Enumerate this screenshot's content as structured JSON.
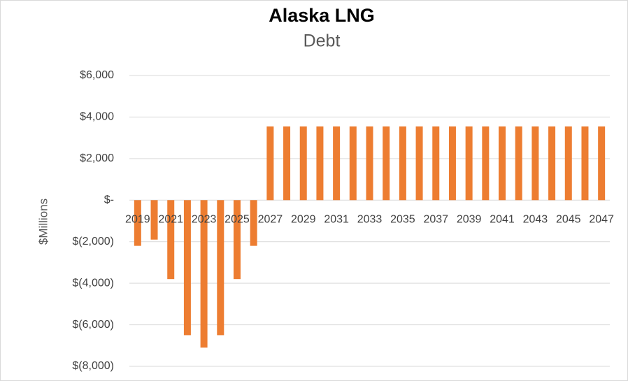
{
  "chart_data": {
    "type": "bar",
    "title": "Alaska LNG",
    "subtitle": "Debt",
    "y_label": "$Millions",
    "categories": [
      "2019",
      null,
      "2021",
      null,
      "2023",
      null,
      "2025",
      null,
      "2027",
      null,
      "2029",
      null,
      "2031",
      null,
      "2033",
      null,
      "2035",
      null,
      "2037",
      null,
      "2039",
      null,
      "2041",
      null,
      "2043",
      null,
      "2045",
      null,
      "2047"
    ],
    "values": [
      -2200,
      -1900,
      -3800,
      -6500,
      -7100,
      -6500,
      -3800,
      -2200,
      3550,
      3550,
      3550,
      3550,
      3550,
      3550,
      3550,
      3550,
      3550,
      3550,
      3550,
      3550,
      3550,
      3550,
      3550,
      3550,
      3550,
      3550,
      3550,
      3550,
      3550
    ],
    "color": "#ed7d31",
    "ylim": [
      -8000,
      6000
    ],
    "yticks": [
      {
        "value": -8000,
        "label": "$(8,000)"
      },
      {
        "value": -6000,
        "label": "$(6,000)"
      },
      {
        "value": -4000,
        "label": "$(4,000)"
      },
      {
        "value": -2000,
        "label": "$(2,000)"
      },
      {
        "value": 0,
        "label": "$-"
      },
      {
        "value": 2000,
        "label": "$2,000"
      },
      {
        "value": 4000,
        "label": "$4,000"
      },
      {
        "value": 6000,
        "label": "$6,000"
      }
    ],
    "grid": true
  }
}
